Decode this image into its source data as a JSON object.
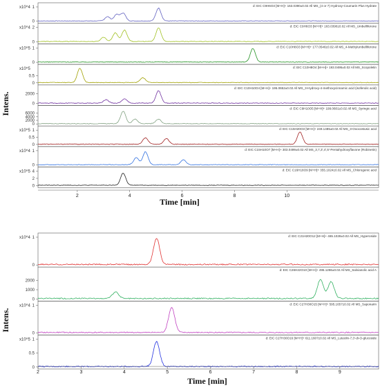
{
  "chart_data": [
    {
      "type": "line",
      "xlabel": "Time [min]",
      "ylabel": "Intens.",
      "xlim": [
        0.5,
        13.5
      ],
      "x_ticks": [
        2,
        4,
        6,
        8,
        10
      ],
      "series": [
        {
          "name": "d: EIC C9H6O3 [M+H]+ 163.0390±0.02 All MS_(4 or 7) Hydroxy-Coumarin Plus Hydrate",
          "color": "#6060c0",
          "scale": "x10^4",
          "ymax": 1,
          "y_ticks": [
            0,
            1
          ],
          "peaks": [
            [
              3.15,
              0.3
            ],
            [
              3.5,
              0.45
            ],
            [
              3.75,
              0.55
            ],
            [
              5.1,
              0.9
            ]
          ]
        },
        {
          "name": "d: EIC C9H6O3 [M+H]+ 163.0390±0.02 All MS_Umbelliferone",
          "color": "#a0c020",
          "scale": "x10^4",
          "ymax": 2,
          "y_ticks": [
            0,
            2
          ],
          "peaks": [
            [
              3.0,
              0.6
            ],
            [
              3.45,
              1.2
            ],
            [
              3.8,
              1.6
            ],
            [
              5.1,
              1.9
            ]
          ]
        },
        {
          "name": "d: EIC C10H8O3 [M+H]+ 177.0546±0.02 All MS_4-Methylumbelliferone",
          "color": "#209020",
          "scale": "x10^5",
          "ymax": 1,
          "y_ticks": [
            0,
            1
          ],
          "peaks": [
            [
              8.7,
              0.95
            ]
          ]
        },
        {
          "name": "d: EIC C10H8O4 [M+H]+ 193.0495±0.02 All MS_Scopoletin",
          "color": "#a0a000",
          "scale": "x10^5",
          "ymax": 1,
          "y_ticks": [
            0,
            0.5
          ],
          "peaks": [
            [
              2.1,
              1.0
            ],
            [
              4.5,
              0.35
            ]
          ]
        },
        {
          "name": "d: EIC C10H10O4 [M+H]+ 195.0652±0.02 All MS_3-Hydroxy-4-methoxycinnamic acid (isoferulic acid)",
          "color": "#7030a0",
          "scale": "",
          "ymax": 3000,
          "y_ticks": [
            0,
            2000
          ],
          "peaks": [
            [
              3.1,
              700
            ],
            [
              3.8,
              900
            ],
            [
              5.1,
              2600
            ]
          ]
        },
        {
          "name": "d: EIC C9H10O5 [M+H]+ 199.0601±0.02 All MS_Syringic acid",
          "color": "#80a080",
          "scale": "",
          "ymax": 8000,
          "y_ticks": [
            0,
            2000,
            4000,
            6000
          ],
          "peaks": [
            [
              3.75,
              7000
            ],
            [
              4.2,
              2500
            ],
            [
              5.1,
              2500
            ]
          ]
        },
        {
          "name": "d: EIC C15H20O3 [M+H]+ 249.1485±0.02 All MS_3-Oxocostusic acid",
          "color": "#a02020",
          "scale": "x10^5",
          "ymax": 1,
          "y_ticks": [
            0,
            0.5,
            1
          ],
          "peaks": [
            [
              4.6,
              0.45
            ],
            [
              5.4,
              0.4
            ],
            [
              10.5,
              0.85
            ]
          ]
        },
        {
          "name": "d: EIC C15H10O7 [M+H]+ 303.0499±0.02 All MS_3,7,3',4',5'-Pentahydroxyflavone (Robinetin)",
          "color": "#3070e0",
          "scale": "x10^4",
          "ymax": 1,
          "y_ticks": [
            0,
            1
          ],
          "peaks": [
            [
              4.25,
              0.5
            ],
            [
              4.6,
              0.9
            ],
            [
              6.05,
              0.35
            ]
          ]
        },
        {
          "name": "d: EIC C16H18O9 [M+H]+ 355.1024±0.02 All MS_Chlorogenic acid",
          "color": "#202020",
          "scale": "x10^5",
          "ymax": 4,
          "y_ticks": [
            0,
            2,
            4
          ],
          "peaks": [
            [
              3.75,
              3.4
            ]
          ]
        }
      ]
    },
    {
      "type": "line",
      "xlabel": "Time [min]",
      "ylabel": "Intens.",
      "xlim": [
        2,
        9.9
      ],
      "x_ticks": [
        2,
        3,
        4,
        5,
        6,
        7,
        8,
        9
      ],
      "series": [
        {
          "name": "d: EIC C21H20O12 [M+H]+ 465.1028±0.02 All MS_Hyperoside",
          "color": "#e03030",
          "scale": "x10^4",
          "ymax": 1,
          "y_ticks": [
            0,
            1
          ],
          "peaks": [
            [
              4.75,
              0.95
            ]
          ]
        },
        {
          "name": "d: EIC C26H22O10 [M+H]+ 495.1286±0.02 All MS_Salvianolic acid A",
          "color": "#30b060",
          "scale": "",
          "ymax": 3000,
          "y_ticks": [
            0,
            1000,
            2000
          ],
          "peaks": [
            [
              3.8,
              700
            ],
            [
              8.55,
              2000
            ],
            [
              8.8,
              1800
            ]
          ]
        },
        {
          "name": "d: EIC C27H30O15 [M+H]+ 595.1657±0.02 All MS_Saponarin",
          "color": "#c040c0",
          "scale": "x10^4",
          "ymax": 1,
          "y_ticks": [
            0,
            1
          ],
          "peaks": [
            [
              5.1,
              0.9
            ]
          ]
        },
        {
          "name": "d: EIC C27H30O16 [M+H]+ 611.1607±0.02 All MS_Luteolin-7,3'-di-O-glucoside",
          "color": "#2030e0",
          "scale": "x10^5",
          "ymax": 1,
          "y_ticks": [
            0,
            0.5,
            1
          ],
          "peaks": [
            [
              4.75,
              0.9
            ]
          ]
        }
      ]
    }
  ]
}
